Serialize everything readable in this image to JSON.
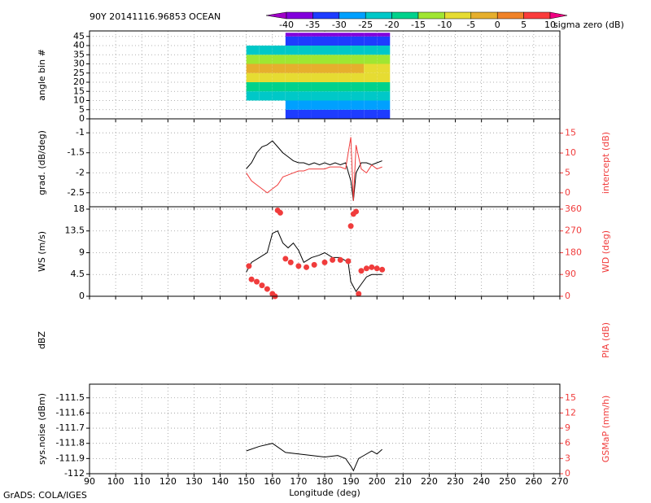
{
  "chart_data": [
    {
      "type": "heatmap",
      "title": "90Y 20141116.96853 OCEAN",
      "ylabel": "angle bin #",
      "xlim": [
        90,
        270
      ],
      "xticks": [
        90,
        100,
        110,
        120,
        130,
        140,
        150,
        160,
        170,
        180,
        190,
        200,
        210,
        220,
        230,
        240,
        250,
        260,
        270
      ],
      "ylim": [
        0,
        48
      ],
      "yticks": [
        0,
        5,
        10,
        15,
        20,
        25,
        30,
        35,
        40,
        45
      ],
      "xbins": [
        150,
        155,
        160,
        165,
        170,
        175,
        180,
        185,
        190,
        195,
        200,
        205
      ],
      "ybins": [
        0,
        5,
        10,
        15,
        20,
        25,
        30,
        35,
        40,
        45,
        47
      ],
      "values": [
        [
          null,
          null,
          null,
          -35,
          -35,
          -35,
          -35,
          -35,
          -35,
          -35,
          -35
        ],
        [
          null,
          null,
          null,
          -30,
          -30,
          -30,
          -30,
          -30,
          -30,
          -30,
          -30
        ],
        [
          -25,
          -25,
          -25,
          -25,
          -25,
          -25,
          -25,
          -25,
          -25,
          -25,
          -25
        ],
        [
          -17,
          -17,
          -17,
          -17,
          -17,
          -17,
          -17,
          -17,
          -17,
          -17,
          -17
        ],
        [
          -8,
          -8,
          -8,
          -8,
          -8,
          -8,
          -8,
          -8,
          -8,
          -8,
          -8
        ],
        [
          -3,
          -3,
          -3,
          -3,
          -3,
          -3,
          -3,
          -3,
          -3,
          -8,
          -8
        ],
        [
          -15,
          -15,
          -15,
          -12,
          -12,
          -12,
          -12,
          -12,
          -12,
          -12,
          -12
        ],
        [
          -22,
          -22,
          -22,
          -22,
          -22,
          -22,
          -22,
          -22,
          -22,
          -22,
          -22
        ],
        [
          null,
          null,
          null,
          -35,
          -35,
          -35,
          -35,
          -35,
          -35,
          -35,
          -35
        ],
        [
          null,
          null,
          null,
          -38,
          -38,
          -38,
          -38,
          -38,
          -38,
          -38,
          -38
        ]
      ],
      "levels": [
        -40,
        -35,
        -30,
        -25,
        -20,
        -15,
        -10,
        -5,
        0,
        5,
        10
      ],
      "colors": [
        "#a000c8",
        "#8200dc",
        "#1e3cff",
        "#00a0ff",
        "#00c8c8",
        "#00d28c",
        "#a0e632",
        "#e6dc32",
        "#e6af2d",
        "#f08228",
        "#fa3c3c",
        "#f00082"
      ],
      "colorbar_label": "sigma zero (dB)"
    },
    {
      "type": "line",
      "ylabel": "grad. (dB/deg)",
      "y2label": "intercept (dB)",
      "xlim": [
        90,
        270
      ],
      "xticks": [
        90,
        100,
        110,
        120,
        130,
        140,
        150,
        160,
        170,
        180,
        190,
        200,
        210,
        220,
        230,
        240,
        250,
        260,
        270
      ],
      "ylim": [
        -2.85,
        -0.65
      ],
      "yticks": [
        -2.5,
        -2,
        -1.5,
        -1
      ],
      "y2lim": [
        -3.5,
        18.6
      ],
      "y2ticks": [
        0,
        5,
        10,
        15
      ],
      "series": [
        {
          "name": "grad",
          "color": "#000000",
          "x": [
            150,
            152,
            154,
            156,
            158,
            160,
            162,
            164,
            166,
            168,
            170,
            172,
            174,
            176,
            178,
            180,
            182,
            184,
            186,
            188,
            190,
            191,
            192,
            194,
            196,
            198,
            200,
            202
          ],
          "values": [
            -1.9,
            -1.75,
            -1.5,
            -1.35,
            -1.3,
            -1.2,
            -1.35,
            -1.5,
            -1.6,
            -1.7,
            -1.75,
            -1.75,
            -1.8,
            -1.75,
            -1.8,
            -1.75,
            -1.8,
            -1.75,
            -1.8,
            -1.75,
            -2.2,
            -2.7,
            -2.0,
            -1.75,
            -1.75,
            -1.8,
            -1.75,
            -1.7
          ]
        },
        {
          "name": "intercept",
          "color": "#f03c3c",
          "axis": "y2",
          "x": [
            150,
            152,
            154,
            156,
            158,
            160,
            162,
            164,
            166,
            168,
            170,
            172,
            174,
            176,
            178,
            180,
            182,
            184,
            186,
            188,
            190,
            191,
            192,
            194,
            196,
            198,
            200,
            202
          ],
          "values": [
            5,
            3,
            2,
            1,
            0,
            1,
            2,
            4,
            4.5,
            5,
            5.5,
            5.5,
            6,
            6,
            6,
            6,
            6.5,
            6.5,
            6.5,
            6,
            14,
            -2,
            12,
            6,
            5,
            7,
            6,
            6.5
          ]
        }
      ]
    },
    {
      "type": "line",
      "ylabel": "WS (m/s)",
      "y2label": "WD (deg)",
      "xlim": [
        90,
        270
      ],
      "xticks": [
        90,
        100,
        110,
        120,
        130,
        140,
        150,
        160,
        170,
        180,
        190,
        200,
        210,
        220,
        230,
        240,
        250,
        260,
        270
      ],
      "ylim": [
        0,
        18.5
      ],
      "yticks": [
        0,
        4.5,
        9,
        13.5,
        18
      ],
      "y2lim": [
        0,
        370
      ],
      "y2ticks": [
        0,
        90,
        180,
        270,
        360
      ],
      "series": [
        {
          "name": "WS",
          "color": "#000000",
          "x": [
            150,
            152,
            155,
            158,
            160,
            162,
            164,
            166,
            168,
            170,
            172,
            175,
            178,
            180,
            183,
            186,
            189,
            190,
            192,
            194,
            196,
            198,
            200,
            202
          ],
          "values": [
            5,
            7,
            8,
            9,
            13,
            13.5,
            11,
            10,
            11,
            9.5,
            7,
            8,
            8.5,
            9,
            8,
            8,
            7,
            3,
            1,
            2.5,
            4,
            4.5,
            4.5,
            4.5
          ]
        },
        {
          "name": "WD",
          "color": "#f03c3c",
          "axis": "y2",
          "marker": true,
          "x": [
            151,
            152,
            154,
            156,
            158,
            160,
            161,
            162,
            163,
            165,
            167,
            170,
            173,
            176,
            180,
            183,
            186,
            189,
            190,
            191,
            192,
            193,
            194,
            196,
            198,
            200,
            202
          ],
          "values": [
            125,
            70,
            60,
            45,
            30,
            10,
            0,
            355,
            345,
            155,
            140,
            125,
            120,
            130,
            140,
            150,
            150,
            145,
            290,
            340,
            350,
            10,
            105,
            115,
            120,
            115,
            110
          ]
        }
      ]
    },
    {
      "type": "empty",
      "ylabel": "dBZ",
      "y2label": "PIA (dB)"
    },
    {
      "type": "line",
      "ylabel": "sys.noise (dBm)",
      "y2label": "GSMaP (mm/h)",
      "xlabel": "Longitude (deg)",
      "xlim": [
        90,
        270
      ],
      "xticks": [
        90,
        100,
        110,
        120,
        130,
        140,
        150,
        160,
        170,
        180,
        190,
        200,
        210,
        220,
        230,
        240,
        250,
        260,
        270
      ],
      "ylim": [
        -112,
        -111.41
      ],
      "yticks": [
        -112,
        -111.9,
        -111.8,
        -111.7,
        -111.6,
        -111.5
      ],
      "y2lim": [
        0,
        17.7
      ],
      "y2ticks": [
        0,
        3,
        6,
        9,
        12,
        15
      ],
      "series": [
        {
          "name": "sys.noise",
          "color": "#000000",
          "x": [
            150,
            155,
            160,
            165,
            170,
            175,
            180,
            185,
            188,
            190,
            191,
            193,
            195,
            198,
            200,
            202
          ],
          "values": [
            -111.85,
            -111.82,
            -111.8,
            -111.86,
            -111.87,
            -111.88,
            -111.89,
            -111.88,
            -111.9,
            -111.95,
            -111.98,
            -111.9,
            -111.88,
            -111.85,
            -111.87,
            -111.84
          ]
        }
      ]
    }
  ],
  "footer": "GrADS: COLA/IGES"
}
